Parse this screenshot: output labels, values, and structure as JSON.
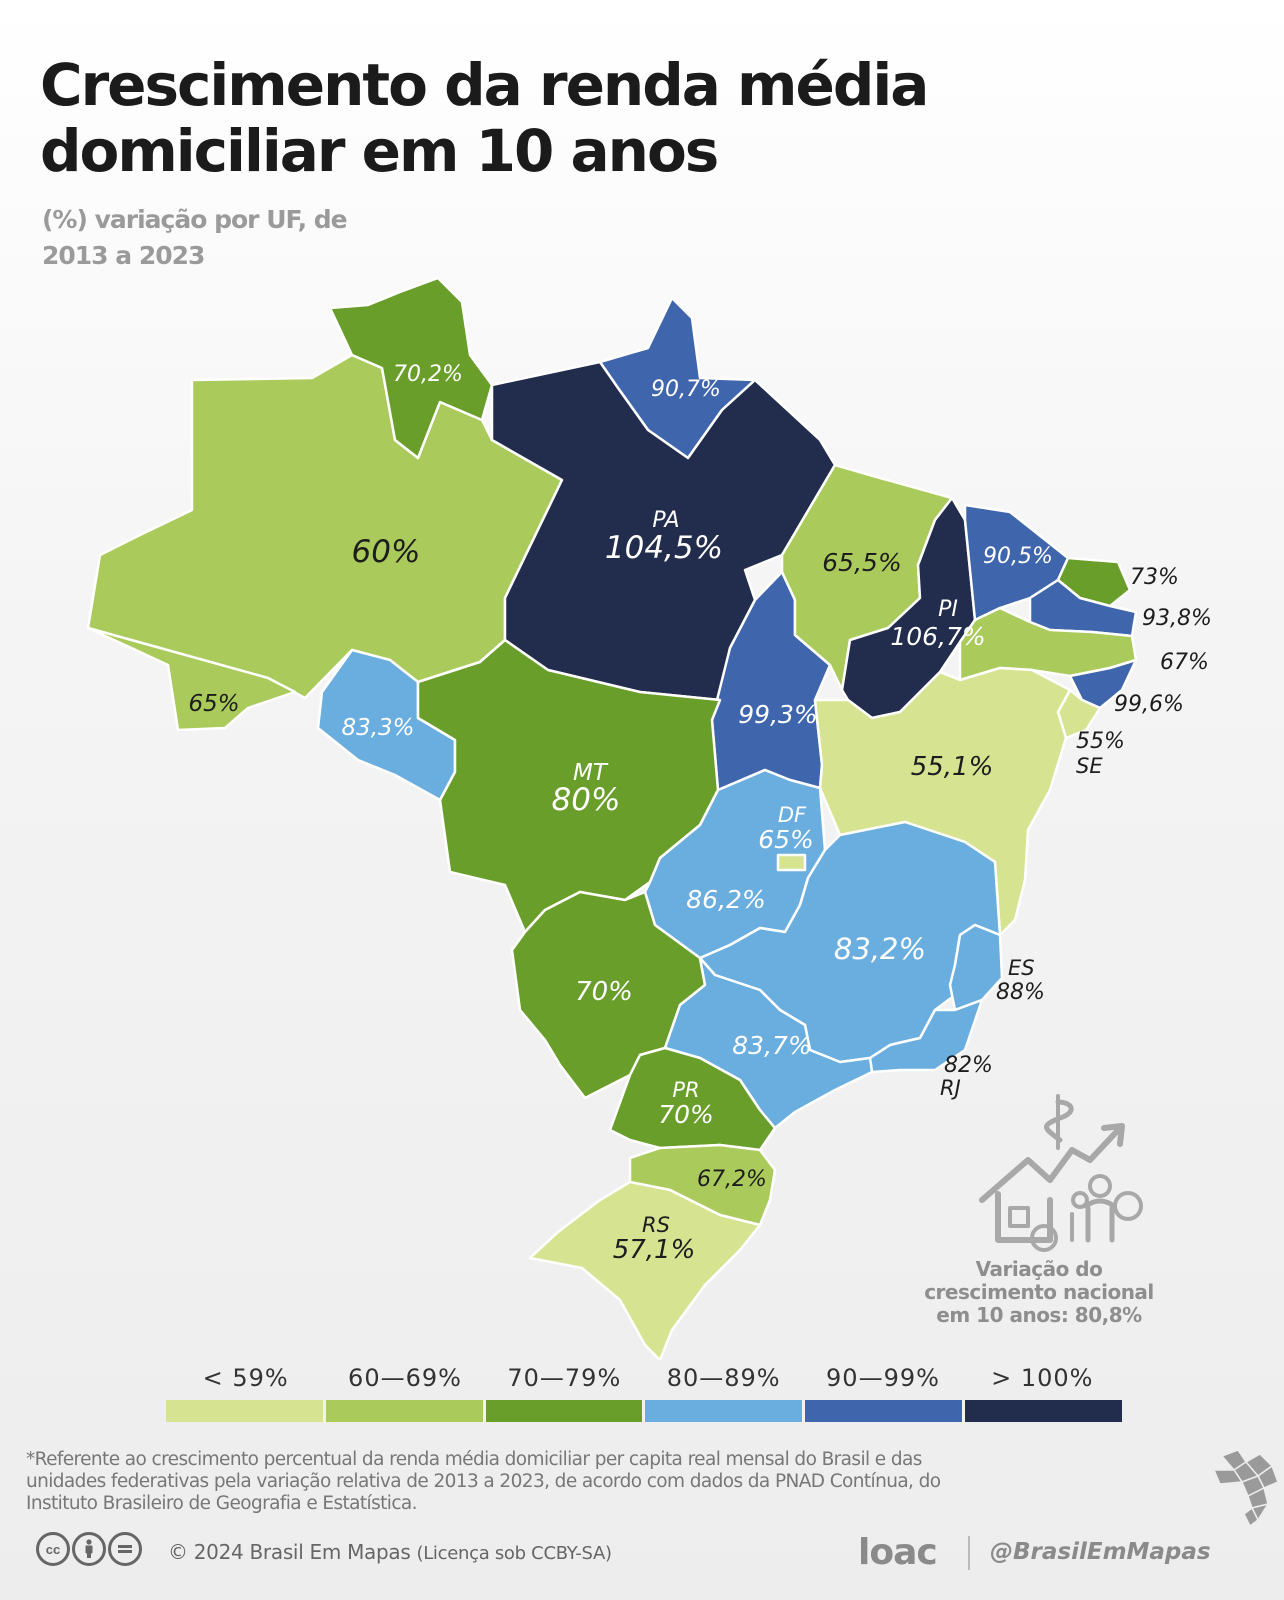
{
  "title": "Crescimento da renda média domiciliar em 10 anos",
  "subtitle": "(%) variação por UF, de 2013 a 2023",
  "colors": {
    "lt59": "#d6e391",
    "c60_69": "#abca5c",
    "c70_79": "#6a9e2a",
    "c80_89": "#6aaee0",
    "c90_99": "#3f66ad",
    "gt100": "#222c4c"
  },
  "states": {
    "rr": {
      "value": "70,2%"
    },
    "ap": {
      "value": "90,7%"
    },
    "am": {
      "value": "60%"
    },
    "pa": {
      "name": "PA",
      "value": "104,5%"
    },
    "ma": {
      "value": "65,5%"
    },
    "pi": {
      "name": "PI",
      "value": "106,7%"
    },
    "ce": {
      "value": "90,5%"
    },
    "rn": {
      "value": "73%"
    },
    "pb": {
      "value": "93,8%"
    },
    "pe": {
      "value": "67%"
    },
    "al": {
      "value": "99,6%"
    },
    "se": {
      "name": "SE",
      "value": "55%"
    },
    "ac": {
      "value": "65%"
    },
    "ro": {
      "value": "83,3%"
    },
    "mt": {
      "name": "MT",
      "value": "80%"
    },
    "to": {
      "value": "99,3%"
    },
    "ba": {
      "value": "55,1%"
    },
    "df": {
      "name": "DF",
      "value": "65%"
    },
    "go": {
      "value": "86,2%"
    },
    "mg": {
      "value": "83,2%"
    },
    "es": {
      "name": "ES",
      "value": "88%"
    },
    "ms": {
      "value": "70%"
    },
    "sp": {
      "value": "83,7%"
    },
    "rj": {
      "name": "RJ",
      "value": "82%"
    },
    "pr": {
      "name": "PR",
      "value": "70%"
    },
    "sc": {
      "value": "67,2%"
    },
    "rs": {
      "name": "RS",
      "value": "57,1%"
    }
  },
  "legend": [
    "< 59%",
    "60—69%",
    "70—79%",
    "80—89%",
    "90—99%",
    "> 100%"
  ],
  "national": "Variação do crescimento nacional em 10 anos: 80,8%",
  "footnote": "*Referente ao crescimento percentual da renda média domiciliar per capita real mensal do Brasil e das unidades federativas pela variação relativa de 2013 a 2023, de acordo com dados da PNAD Contínua, do Instituto Brasileiro de Geografia e Estatística.",
  "footer": {
    "copyright": "© 2024  Brasil Em Mapas",
    "license": "(Licença sob CCBY-SA)",
    "logo": "loac",
    "handle": "@BrasilEmMapas"
  },
  "icons": [
    "cc-icon",
    "by-icon",
    "nd-icon",
    "income-growth-icon",
    "brazil-logo-icon"
  ]
}
